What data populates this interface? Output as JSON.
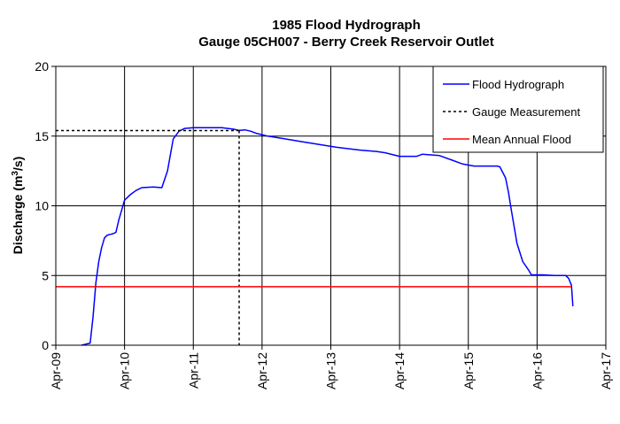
{
  "chart_data": {
    "type": "line",
    "title": "1985 Flood Hydrograph",
    "subtitle": "Gauge 05CH007 - Berry Creek Reservoir Outlet",
    "ylabel_main": "Discharge (m",
    "ylabel_sup": "3",
    "ylabel_tail": "/s)",
    "xlabel": "",
    "ylim": [
      0,
      20
    ],
    "yticks": [
      0,
      5,
      10,
      15,
      20
    ],
    "xlim": [
      "Apr-09",
      "Apr-17"
    ],
    "xticks": [
      "Apr-09",
      "Apr-10",
      "Apr-11",
      "Apr-12",
      "Apr-13",
      "Apr-14",
      "Apr-15",
      "Apr-16",
      "Apr-17"
    ],
    "grid": true,
    "legend_position": "top-right",
    "series": [
      {
        "name": "Flood Hydrograph",
        "color": "#0000ff",
        "style": "solid",
        "x": [
          "Apr-09 09:00",
          "Apr-09 10:00",
          "Apr-09 11:00",
          "Apr-09 12:00",
          "Apr-09 13:00",
          "Apr-09 14:00",
          "Apr-09 15:00",
          "Apr-09 16:00",
          "Apr-09 17:00",
          "Apr-09 18:00",
          "Apr-09 19:00",
          "Apr-09 20:00",
          "Apr-09 21:00",
          "Apr-09 22:00",
          "Apr-10 00:00",
          "Apr-10 02:00",
          "Apr-10 04:00",
          "Apr-10 06:00",
          "Apr-10 10:00",
          "Apr-10 13:00",
          "Apr-10 15:00",
          "Apr-10 17:00",
          "Apr-10 19:00",
          "Apr-10 21:00",
          "Apr-11 00:00",
          "Apr-11 05:00",
          "Apr-11 10:00",
          "Apr-11 14:00",
          "Apr-11 16:00",
          "Apr-11 18:00",
          "Apr-11 20:00",
          "Apr-11 22:00",
          "Apr-12 02:00",
          "Apr-12 08:00",
          "Apr-12 14:00",
          "Apr-12 20:00",
          "Apr-13 02:00",
          "Apr-13 10:00",
          "Apr-13 16:00",
          "Apr-13 19:00",
          "Apr-14 00:00",
          "Apr-14 06:00",
          "Apr-14 08:00",
          "Apr-14 14:00",
          "Apr-14 18:00",
          "Apr-14 22:00",
          "Apr-15 02:00",
          "Apr-15 10:00",
          "Apr-15 11:00",
          "Apr-15 13:00",
          "Apr-15 14:00",
          "Apr-15 15:00",
          "Apr-15 17:00",
          "Apr-15 19:00",
          "Apr-15 21:00",
          "Apr-15 22:00",
          "Apr-16 02:00",
          "Apr-16 06:00",
          "Apr-16 10:00",
          "Apr-16 11:00",
          "Apr-16 12:00",
          "Apr-16 12:30"
        ],
        "values": [
          0.0,
          0.05,
          0.1,
          0.15,
          2.0,
          4.5,
          6.0,
          7.0,
          7.7,
          7.9,
          7.95,
          8.0,
          8.1,
          9.0,
          10.4,
          10.8,
          11.1,
          11.3,
          11.35,
          11.3,
          12.5,
          14.8,
          15.35,
          15.55,
          15.6,
          15.6,
          15.6,
          15.5,
          15.4,
          15.45,
          15.35,
          15.2,
          15.0,
          14.8,
          14.6,
          14.4,
          14.2,
          14.0,
          13.9,
          13.8,
          13.55,
          13.55,
          13.7,
          13.6,
          13.3,
          13.0,
          12.85,
          12.85,
          12.8,
          12.0,
          11.0,
          9.7,
          7.3,
          6.0,
          5.4,
          5.05,
          5.05,
          5.0,
          5.0,
          4.8,
          4.3,
          2.8
        ]
      },
      {
        "name": "Gauge Measurement",
        "color": "#000000",
        "style": "dotted",
        "x": [
          "Apr-11 16:00"
        ],
        "values": [
          15.4
        ]
      },
      {
        "name": "Mean Annual Flood",
        "color": "#ff0000",
        "style": "solid",
        "x": [
          "Apr-09",
          "Apr-16 12:00"
        ],
        "values": [
          4.2,
          4.2
        ]
      }
    ]
  }
}
